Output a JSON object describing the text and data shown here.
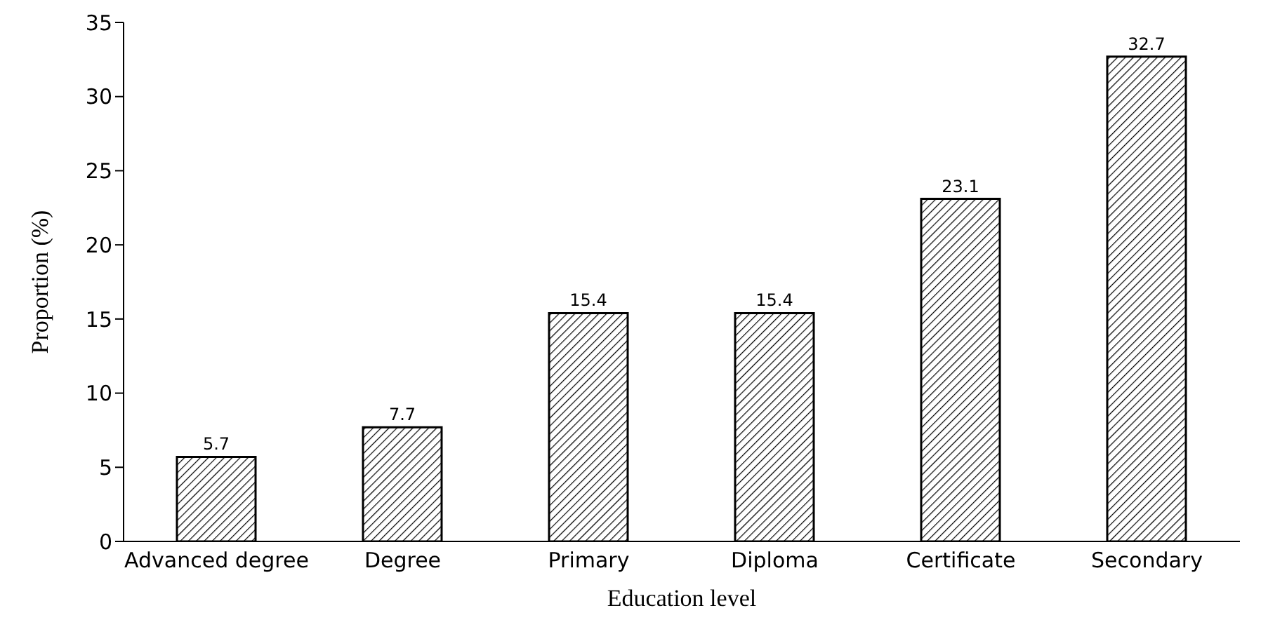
{
  "chart_data": {
    "type": "bar",
    "xlabel": "Education level",
    "ylabel": "Proportion (%)",
    "categories": [
      "Advanced degree",
      "Degree",
      "Primary",
      "Diploma",
      "Certificate",
      "Secondary"
    ],
    "values": [
      5.7,
      7.7,
      15.4,
      15.4,
      23.1,
      32.7
    ],
    "color": "#000000",
    "ylim": [
      0,
      35
    ],
    "yticks": [
      0,
      5,
      10,
      15,
      20,
      25,
      30,
      35
    ],
    "grid": false,
    "data_labels": true
  }
}
